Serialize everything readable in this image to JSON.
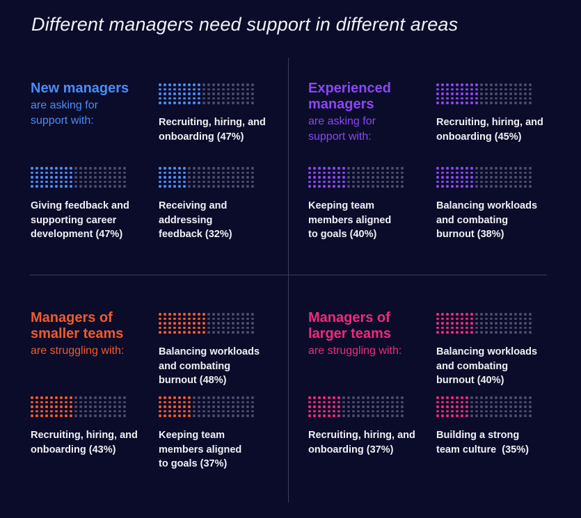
{
  "title": "Different managers need support in different areas",
  "colors": {
    "background": "#0b0c2a",
    "divider": "#3c3d5e",
    "inactive_dot": "#4a4b6c",
    "new": "#4a8df8",
    "experienced": "#8b47f5",
    "smaller": "#f25a2c",
    "larger": "#ef2a7a"
  },
  "sections": [
    {
      "key": "new",
      "name_lines": [
        "New managers"
      ],
      "sub_lines": [
        "are asking for",
        "support with:"
      ],
      "items": [
        {
          "label_lines": [
            "Recruiting, hiring, and",
            "onboarding (47%)"
          ],
          "value": 47
        },
        {
          "label_lines": [
            "Giving feedback and",
            "supporting career",
            "development (47%)"
          ],
          "value": 47
        },
        {
          "label_lines": [
            "Receiving and",
            "addressing",
            "feedback (32%)"
          ],
          "value": 32
        }
      ]
    },
    {
      "key": "experienced",
      "name_lines": [
        "Experienced",
        "managers"
      ],
      "sub_lines": [
        "are asking for",
        "support with:"
      ],
      "items": [
        {
          "label_lines": [
            "Recruiting, hiring, and",
            "onboarding (45%)"
          ],
          "value": 45
        },
        {
          "label_lines": [
            "Keeping team",
            "members aligned",
            "to goals (40%)"
          ],
          "value": 40
        },
        {
          "label_lines": [
            "Balancing workloads",
            "and combating",
            "burnout (38%)"
          ],
          "value": 38
        }
      ]
    },
    {
      "key": "smaller",
      "name_lines": [
        "Managers of",
        "smaller teams"
      ],
      "sub_lines": [
        "are struggling with:"
      ],
      "items": [
        {
          "label_lines": [
            "Balancing workloads",
            "and combating",
            "burnout (48%)"
          ],
          "value": 48
        },
        {
          "label_lines": [
            "Recruiting, hiring, and",
            "onboarding (43%)"
          ],
          "value": 43
        },
        {
          "label_lines": [
            "Keeping team",
            "members aligned",
            "to goals (37%)"
          ],
          "value": 37
        }
      ]
    },
    {
      "key": "larger",
      "name_lines": [
        "Managers of",
        "larger teams"
      ],
      "sub_lines": [
        "are struggling with:"
      ],
      "items": [
        {
          "label_lines": [
            "Balancing workloads",
            "and combating",
            "burnout (40%)"
          ],
          "value": 40
        },
        {
          "label_lines": [
            "Recruiting, hiring, and",
            "onboarding (37%)"
          ],
          "value": 37
        },
        {
          "label_lines": [
            "Building a strong",
            "team culture  (35%)"
          ],
          "value": 35
        }
      ]
    }
  ]
}
